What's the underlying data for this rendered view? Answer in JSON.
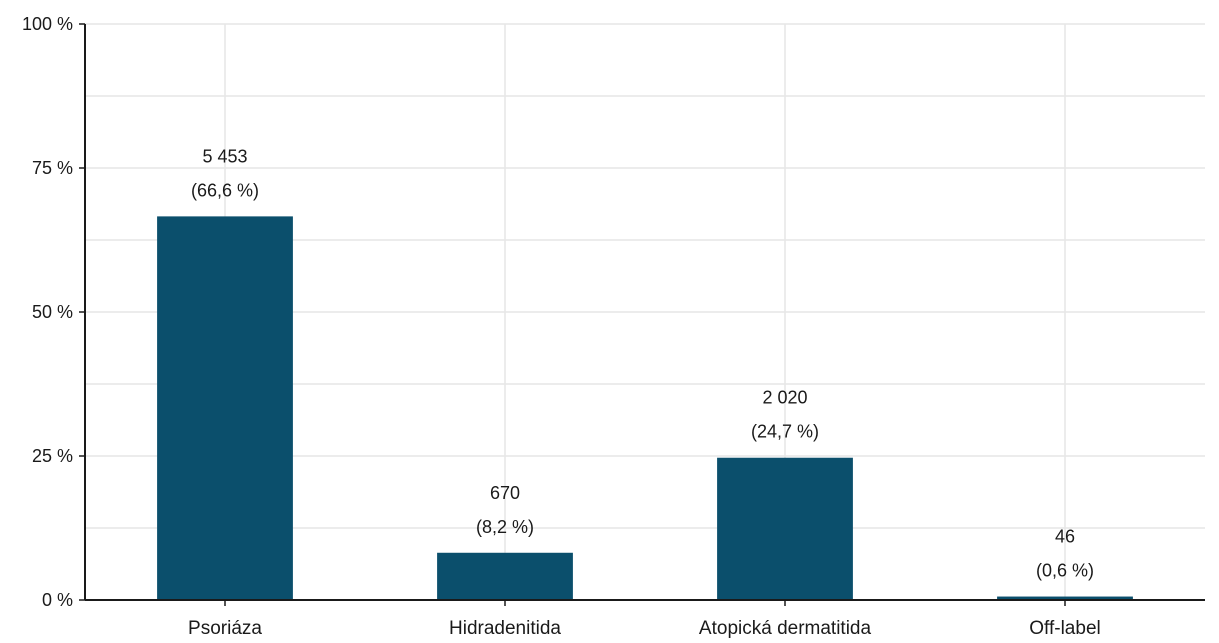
{
  "chart_data": {
    "type": "bar",
    "categories": [
      "Psoriáza",
      "Hidradenitida",
      "Atopická dermatitida",
      "Off-label"
    ],
    "values": [
      66.6,
      8.2,
      24.7,
      0.6
    ],
    "counts": [
      "5 453",
      "670",
      "2 020",
      "46"
    ],
    "value_labels": [
      "(66,6 %)",
      "(8,2 %)",
      "(24,7 %)",
      "(0,6 %)"
    ],
    "ylim": [
      0,
      100
    ],
    "yticks": [
      0,
      25,
      50,
      75,
      100
    ],
    "ytick_labels": [
      "0 %",
      "25 %",
      "50 %",
      "75 %",
      "100 %"
    ],
    "bar_color": "#0b4f6c",
    "grid": true
  }
}
